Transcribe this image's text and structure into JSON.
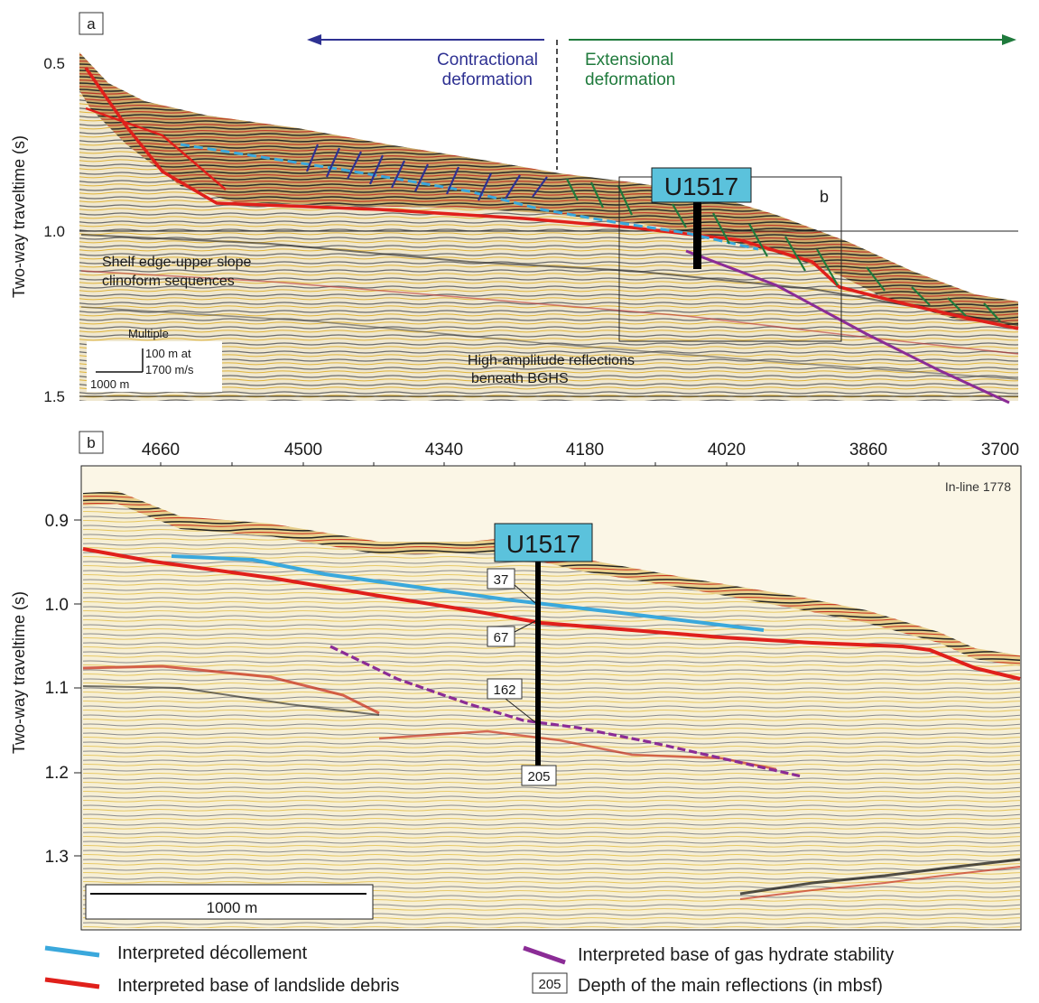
{
  "panel_a": {
    "label": "a",
    "y_axis_label": "Two-way traveltime (s)",
    "y_ticks": [
      "0.5",
      "1.0",
      "1.5"
    ],
    "contractional_label": [
      "Contractional",
      "deformation"
    ],
    "extensional_label": [
      "Extensional",
      "deformation"
    ],
    "site_label": "U1517",
    "inset_label": "b",
    "shelf_label": [
      "Shelf edge-upper slope",
      "clinoform sequences"
    ],
    "multiple_label": "Multiple",
    "high_amp_label": [
      "High-amplitude reflections",
      "beneath BGHS"
    ],
    "scale_vertical": [
      "100 m at",
      "1700 m/s"
    ],
    "scale_horizontal": "1000 m",
    "colors": {
      "contractional": "#2e3192",
      "extensional": "#1f7a3c"
    }
  },
  "panel_b": {
    "label": "b",
    "x_ticks": [
      "4660",
      "4500",
      "4340",
      "4180",
      "4020",
      "3860",
      "3700"
    ],
    "y_axis_label": "Two-way traveltime (s)",
    "y_ticks": [
      "0.9",
      "1.0",
      "1.1",
      "1.2",
      "1.3"
    ],
    "inline_label": "In-line 1778",
    "site_label": "U1517",
    "depth_labels": [
      "37",
      "67",
      "162",
      "205"
    ],
    "scale_label": "1000 m"
  },
  "legend": {
    "decollement": "Interpreted décollement",
    "landslide": "Interpreted base of landslide debris",
    "bghs": "Interpreted base of gas hydrate stability",
    "depth_box": "205",
    "depth_text": "Depth of the main reflections (in mbsf)",
    "colors": {
      "decollement": "#3aa8dc",
      "landslide": "#e0201b",
      "bghs": "#8b2c96"
    }
  }
}
